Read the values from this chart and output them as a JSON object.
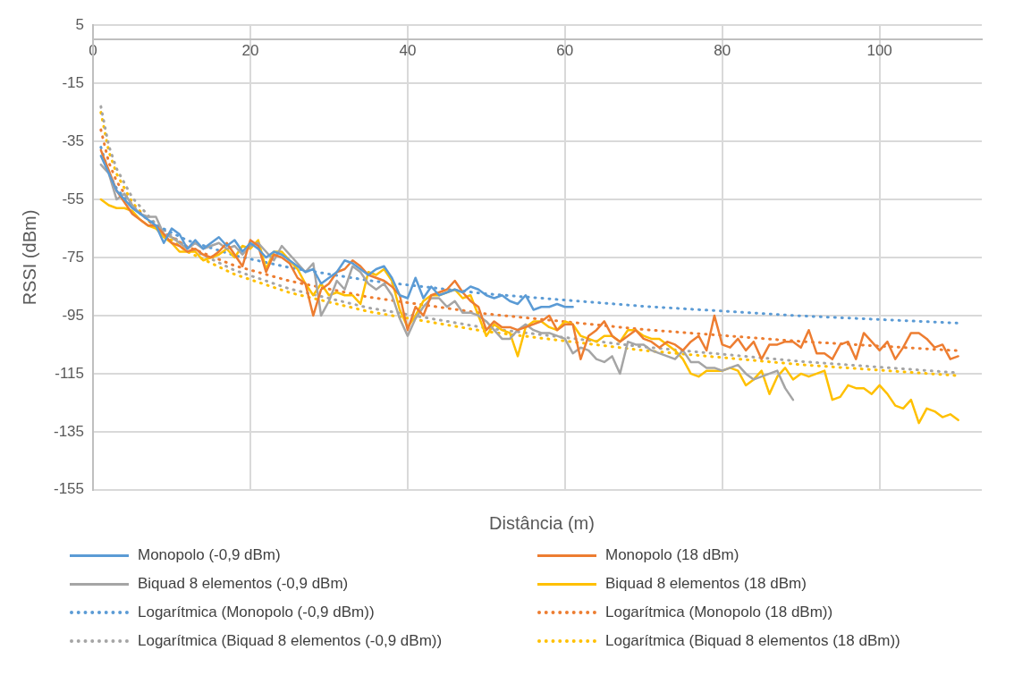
{
  "chart_data": {
    "type": "line",
    "xlabel": "Distância (m)",
    "ylabel": "RSSI (dBm)",
    "xlim": [
      0,
      113
    ],
    "xticks": [
      0,
      20,
      40,
      60,
      80,
      100
    ],
    "ylim": [
      -155,
      5
    ],
    "yticks": [
      5,
      -15,
      -35,
      -55,
      -75,
      -95,
      -115,
      -135,
      -155
    ],
    "grid": true,
    "legend": "bottom",
    "marker": "none",
    "series": [
      {
        "name": "Monopolo (-0,9 dBm)",
        "color": "#5b9bd5",
        "line_style": "solid",
        "x": [
          1,
          2,
          3,
          4,
          5,
          6,
          7,
          8,
          9,
          10,
          11,
          12,
          13,
          14,
          15,
          16,
          17,
          18,
          19,
          20,
          21,
          22,
          23,
          24,
          25,
          26,
          27,
          28,
          29,
          30,
          31,
          32,
          33,
          34,
          35,
          36,
          37,
          38,
          39,
          40,
          41,
          42,
          43,
          44,
          45,
          46,
          47,
          48,
          49,
          50,
          51,
          52,
          53,
          54,
          55,
          56,
          57,
          58,
          59,
          60,
          61
        ],
        "values": [
          -40,
          -46,
          -52,
          -55,
          -58,
          -60,
          -62,
          -64,
          -70,
          -65,
          -67,
          -72,
          -69,
          -72,
          -70,
          -68,
          -71,
          -69,
          -73,
          -70,
          -72,
          -75,
          -73,
          -74,
          -76,
          -78,
          -80,
          -79,
          -84,
          -82,
          -80,
          -76,
          -77,
          -79,
          -81,
          -79,
          -78,
          -82,
          -88,
          -89,
          -82,
          -89,
          -85,
          -88,
          -87,
          -86,
          -87,
          -85,
          -86,
          -88,
          -89,
          -88,
          -90,
          -91,
          -88,
          -93,
          -92,
          -92,
          -91,
          -92,
          -92
        ]
      },
      {
        "name": "Monopolo (18 dBm)",
        "color": "#ed7d31",
        "line_style": "solid",
        "x": [
          1,
          2,
          3,
          4,
          5,
          6,
          7,
          8,
          9,
          10,
          11,
          12,
          13,
          14,
          15,
          16,
          17,
          18,
          19,
          20,
          21,
          22,
          23,
          24,
          25,
          26,
          27,
          28,
          29,
          30,
          31,
          32,
          33,
          34,
          35,
          36,
          37,
          38,
          39,
          40,
          41,
          42,
          43,
          44,
          45,
          46,
          47,
          48,
          49,
          50,
          51,
          52,
          53,
          54,
          55,
          56,
          57,
          58,
          59,
          60,
          61,
          62,
          63,
          64,
          65,
          66,
          67,
          68,
          69,
          70,
          71,
          72,
          73,
          74,
          75,
          76,
          77,
          78,
          79,
          80,
          81,
          82,
          83,
          84,
          85,
          86,
          87,
          88,
          89,
          90,
          91,
          92,
          93,
          94,
          95,
          96,
          97,
          98,
          99,
          100,
          101,
          102,
          103,
          104,
          105,
          106,
          107,
          108,
          109,
          110
        ],
        "values": [
          -38,
          -45,
          -52,
          -56,
          -60,
          -62,
          -64,
          -64,
          -67,
          -70,
          -71,
          -73,
          -72,
          -74,
          -75,
          -73,
          -70,
          -74,
          -78,
          -69,
          -71,
          -80,
          -74,
          -75,
          -77,
          -82,
          -84,
          -95,
          -86,
          -84,
          -80,
          -79,
          -76,
          -78,
          -81,
          -82,
          -83,
          -85,
          -88,
          -100,
          -92,
          -95,
          -88,
          -87,
          -86,
          -83,
          -87,
          -90,
          -92,
          -100,
          -97,
          -99,
          -99,
          -100,
          -99,
          -98,
          -97,
          -95,
          -100,
          -98,
          -98,
          -110,
          -102,
          -100,
          -97,
          -102,
          -104,
          -102,
          -100,
          -103,
          -104,
          -106,
          -104,
          -105,
          -107,
          -104,
          -102,
          -107,
          -95,
          -105,
          -106,
          -103,
          -107,
          -104,
          -110,
          -105,
          -105,
          -104,
          -104,
          -106,
          -100,
          -108,
          -108,
          -110,
          -105,
          -104,
          -110,
          -101,
          -104,
          -107,
          -104,
          -110,
          -106,
          -101,
          -101,
          -103,
          -106,
          -105,
          -110,
          -109
        ]
      },
      {
        "name": "Biquad 8 elementos (-0,9 dBm)",
        "color": "#a5a5a5",
        "line_style": "solid",
        "x": [
          1,
          2,
          3,
          4,
          5,
          6,
          7,
          8,
          9,
          10,
          11,
          12,
          13,
          14,
          15,
          16,
          17,
          18,
          19,
          20,
          21,
          22,
          23,
          24,
          25,
          26,
          27,
          28,
          29,
          30,
          31,
          32,
          33,
          34,
          35,
          36,
          37,
          38,
          39,
          40,
          41,
          42,
          43,
          44,
          45,
          46,
          47,
          48,
          49,
          50,
          51,
          52,
          53,
          54,
          55,
          56,
          57,
          58,
          59,
          60,
          61,
          62,
          63,
          64,
          65,
          66,
          67,
          68,
          69,
          70,
          71,
          72,
          73,
          74,
          75,
          76,
          77,
          78,
          79,
          80,
          81,
          82,
          83,
          84,
          85,
          86,
          87,
          88,
          89
        ],
        "values": [
          -43,
          -46,
          -55,
          -53,
          -57,
          -60,
          -61,
          -61,
          -67,
          -68,
          -70,
          -72,
          -70,
          -72,
          -71,
          -70,
          -72,
          -71,
          -74,
          -71,
          -70,
          -73,
          -76,
          -71,
          -74,
          -77,
          -80,
          -77,
          -95,
          -90,
          -83,
          -86,
          -78,
          -80,
          -84,
          -86,
          -84,
          -88,
          -96,
          -102,
          -96,
          -92,
          -89,
          -89,
          -92,
          -90,
          -94,
          -94,
          -95,
          -97,
          -100,
          -103,
          -103,
          -100,
          -98,
          -100,
          -101,
          -101,
          -102,
          -103,
          -108,
          -106,
          -107,
          -110,
          -111,
          -109,
          -115,
          -104,
          -105,
          -105,
          -107,
          -108,
          -109,
          -110,
          -107,
          -111,
          -111,
          -113,
          -113,
          -114,
          -113,
          -112,
          -115,
          -117,
          -116,
          -115,
          -114,
          -120,
          -124
        ]
      },
      {
        "name": "Biquad 8 elementos (18 dBm)",
        "color": "#ffc000",
        "line_style": "solid",
        "x": [
          1,
          2,
          3,
          4,
          5,
          6,
          7,
          8,
          9,
          10,
          11,
          12,
          13,
          14,
          15,
          16,
          17,
          18,
          19,
          20,
          21,
          22,
          23,
          24,
          25,
          26,
          27,
          28,
          29,
          30,
          31,
          32,
          33,
          34,
          35,
          36,
          37,
          38,
          39,
          40,
          41,
          42,
          43,
          44,
          45,
          46,
          47,
          48,
          49,
          50,
          51,
          52,
          53,
          54,
          55,
          56,
          57,
          58,
          59,
          60,
          61,
          62,
          63,
          64,
          65,
          66,
          67,
          68,
          69,
          70,
          71,
          72,
          73,
          74,
          75,
          76,
          77,
          78,
          79,
          80,
          81,
          82,
          83,
          84,
          85,
          86,
          87,
          88,
          89,
          90,
          91,
          92,
          93,
          94,
          95,
          96,
          97,
          98,
          99,
          100,
          101,
          102,
          103,
          104,
          105,
          106,
          107,
          108,
          109,
          110
        ],
        "values": [
          -55,
          -57,
          -58,
          -58,
          -59,
          -62,
          -64,
          -65,
          -68,
          -70,
          -73,
          -73,
          -73,
          -76,
          -75,
          -74,
          -72,
          -75,
          -71,
          -72,
          -69,
          -79,
          -73,
          -73,
          -76,
          -79,
          -84,
          -88,
          -84,
          -88,
          -87,
          -88,
          -88,
          -91,
          -80,
          -81,
          -79,
          -83,
          -93,
          -99,
          -95,
          -90,
          -88,
          -88,
          -87,
          -86,
          -89,
          -88,
          -95,
          -102,
          -98,
          -100,
          -101,
          -109,
          -99,
          -97,
          -97,
          -99,
          -100,
          -97,
          -98,
          -102,
          -103,
          -104,
          -102,
          -102,
          -104,
          -100,
          -100,
          -102,
          -103,
          -103,
          -105,
          -107,
          -110,
          -115,
          -116,
          -114,
          -114,
          -114,
          -113,
          -114,
          -119,
          -117,
          -114,
          -122,
          -116,
          -113,
          -117,
          -115,
          -116,
          -115,
          -114,
          -124,
          -123,
          -119,
          -120,
          -120,
          -122,
          -119,
          -122,
          -126,
          -127,
          -124,
          -132,
          -127,
          -128,
          -130,
          -129,
          -131
        ]
      },
      {
        "name": "Logarítmica (Monopolo (-0,9 dBm))",
        "color": "#5b9bd5",
        "line_style": "dotted",
        "x": [
          1,
          2,
          3,
          5,
          8,
          12,
          18,
          25,
          35,
          50,
          70,
          90,
          110
        ],
        "values": [
          -37,
          -45.9,
          -51.2,
          -57.8,
          -63.8,
          -69.1,
          -74.3,
          -78.5,
          -82.9,
          -87.5,
          -91.8,
          -95.1,
          -97.6
        ]
      },
      {
        "name": "Logarítmica (Monopolo (18 dBm))",
        "color": "#ed7d31",
        "line_style": "dotted",
        "x": [
          1,
          2,
          3,
          5,
          8,
          12,
          18,
          25,
          35,
          50,
          70,
          90,
          110
        ],
        "values": [
          -31,
          -42.2,
          -48.8,
          -57.1,
          -64.7,
          -71.3,
          -77.8,
          -83.1,
          -88.6,
          -94.4,
          -99.8,
          -103.9,
          -107.1
        ]
      },
      {
        "name": "Logarítmica (Biquad 8 elementos (-0,9 dBm))",
        "color": "#a5a5a5",
        "line_style": "dotted",
        "x": [
          1,
          2,
          3,
          5,
          8,
          12,
          18,
          25,
          35,
          50,
          70,
          90,
          110
        ],
        "values": [
          -23,
          -36.5,
          -44.4,
          -54.4,
          -63.5,
          -71.5,
          -79.4,
          -85.8,
          -92.3,
          -99.3,
          -105.8,
          -110.8,
          -114.7
        ]
      },
      {
        "name": "Logarítmica (Biquad 8 elementos (18 dBm))",
        "color": "#ffc000",
        "line_style": "dotted",
        "x": [
          1,
          2,
          3,
          5,
          8,
          12,
          18,
          25,
          35,
          50,
          70,
          90,
          110
        ],
        "values": [
          -25,
          -38.4,
          -46.2,
          -56.1,
          -65.1,
          -73,
          -80.8,
          -87.1,
          -93.6,
          -100.5,
          -107,
          -111.9,
          -115.7
        ]
      }
    ]
  }
}
